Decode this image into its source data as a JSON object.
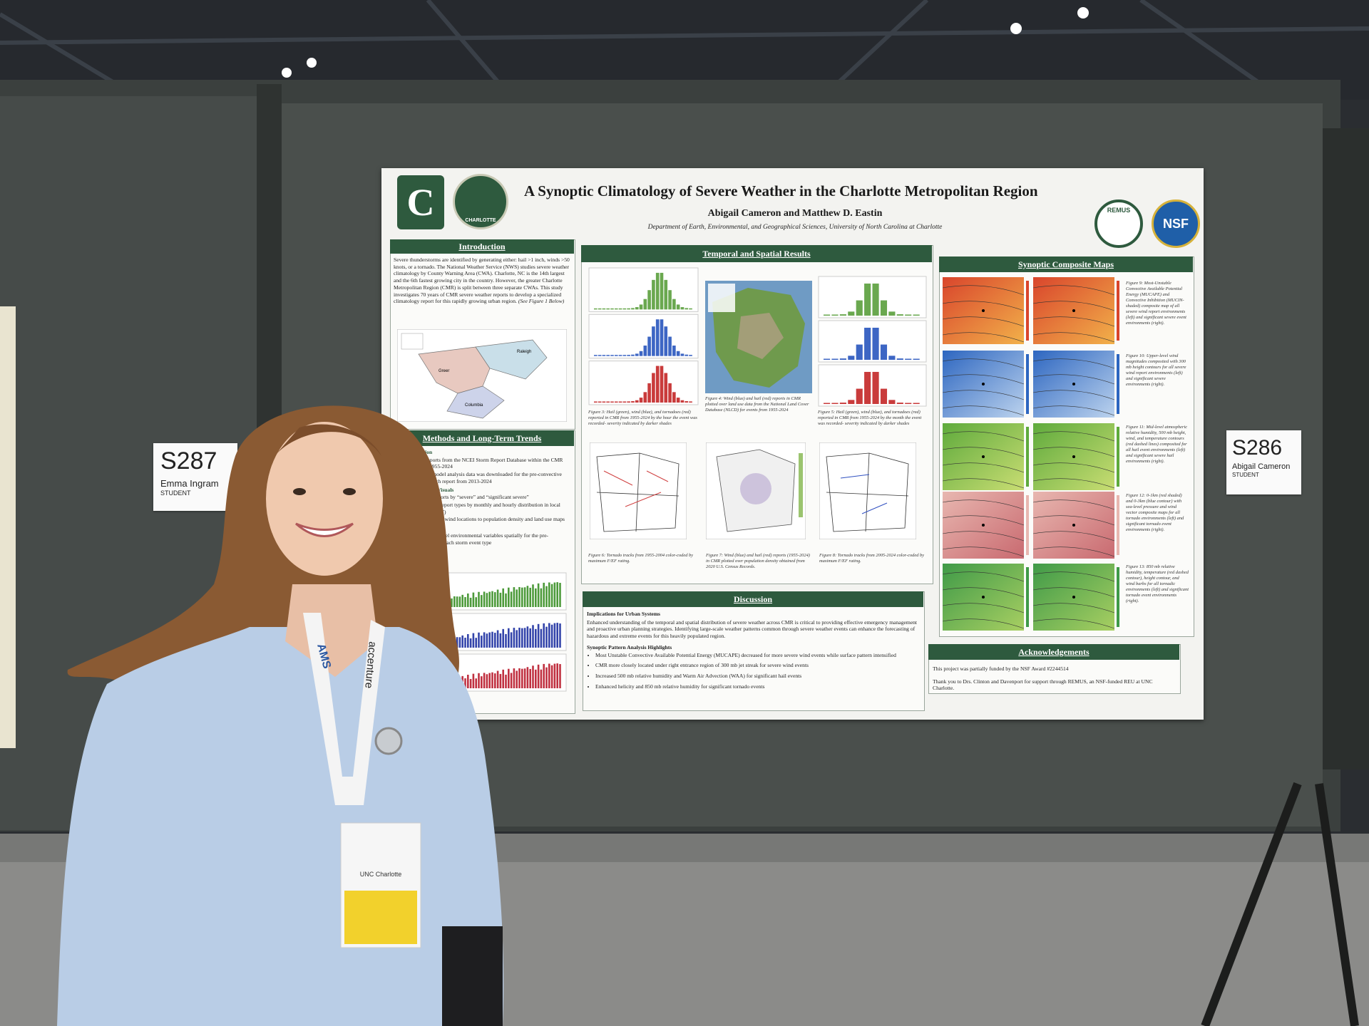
{
  "poster": {
    "title": "A Synoptic Climatology of Severe Weather in the Charlotte Metropolitan Region",
    "authors": "Abigail Cameron and Matthew D. Eastin",
    "affiliation": "Department of Earth, Environmental, and Geographical Sciences, University of North Carolina at Charlotte",
    "logos": {
      "university": "CHARLOTTE",
      "remus": "REMUS",
      "nsf": "NSF"
    },
    "introduction": {
      "heading": "Introduction",
      "text": "Severe thunderstorms are identified by generating either: hail >1 inch, winds >50 knots, or a tornado. The National Weather Service (NWS) studies severe weather climatology by County Warning Area (CWA). Charlotte, NC is the 14th largest and the 6th fastest growing city in the country. However, the greater Charlotte Metropolitan Region (CMR) is split between three separate CWAs. This study investigates 70 years of CMR severe weather reports to develop a specialized climatology report for this rapidly growing urban region.",
      "note": "(See Figure 1 Below)",
      "map_labels": [
        "Greer",
        "Raleigh",
        "Columbia"
      ]
    },
    "methods": {
      "heading": "Methods and Long-Term Trends",
      "groups": [
        {
          "title": "Data Acquisition",
          "items": [
            "All severe reports from the NCEI Storm Report Database within the CMR region from 1955-2024",
            "RAP weather model analysis data was downloaded for the pre-convective hour prior to each report from 2013-2024"
          ]
        },
        {
          "title": "Python Generated Visuals",
          "items": [
            "Differentiated reports by “severe” and “significant severe”",
            "Visualized storm report types by monthly and hourly distribution in local standard time (LST)",
            "Compared hail and wind locations to population density and land use maps"
          ]
        },
        {
          "title": "Composite Maps",
          "items": [
            "Averaged RAP model environmental variables spatially for the pre-convective hour of each storm event type"
          ]
        }
      ]
    },
    "results": {
      "heading": "Temporal and Spatial Results",
      "captions": [
        "Figure 3: Hail (green), wind (blue), and tornadoes (red) reported in CMR from 1955-2024 by the hour the event was recorded- severity indicated by darker shades",
        "Figure 4: Wind (blue) and hail (red) reports in CMR plotted over land use data from the National Land Cover Database (NLCD) for events from 1955-2024",
        "Figure 5: Hail (green), wind (blue), and tornadoes (red) reported in CMR from 1955-2024 by the month the event was recorded- severity indicated by darker shades",
        "Figure 6: Tornado tracks from 1955-2004 color-coded by maximum F/EF rating.",
        "Figure 7: Wind (blue) and hail (red) reports (1955-2024) in CMR plotted over population density obtained from 2020 U.S. Census Records.",
        "Figure 8: Tornado tracks from 2005-2024 color-coded by maximum F/EF rating."
      ]
    },
    "discussion": {
      "heading": "Discussion",
      "subheading1": "Implications for Urban Systems",
      "text": "Enhanced understanding of the temporal and spatial distribution of severe weather across CMR is critical to providing effective emergency management and proactive urban planning strategies. Identifying large-scale weather patterns common through severe weather events can enhance the forecasting of hazardous and extreme events for this heavily populated region.",
      "subheading2": "Synoptic Pattern Analysis Highlights",
      "highlights": [
        "Most Unstable Convective Available Potential Energy (MUCAPE) decreased for more severe wind events while surface pattern intensified",
        "CMR more closely located under right entrance region of 300 mb jet streak for severe wind events",
        "Increased 500 mb relative humidity and Warm Air Advection (WAA) for significant hail events",
        "Enhanced helicity and 850 mb relative humidity for significant tornado events"
      ]
    },
    "synoptic": {
      "heading": "Synoptic Composite Maps",
      "captions": [
        "Figure 9: Most-Unstable Convective Available Potential Energy (MUCAPE) and Convective Inhibition (MUCIN- shaded) composite map of all severe wind report environments (left) and significant severe event environments (right).",
        "Figure 10: Upper-level wind magnitudes composited with 300 mb height contours for all severe wind report environments (left) and significant severe environments (right).",
        "Figure 11: Mid-level atmospheric relative humidity, 500 mb height, wind, and temperature contours (red dashed lines) composited for all hail event environments (left) and significant severe hail environments (right).",
        "Figure 12: 0-1km (red shaded) and 0-3km (blue contour) with sea-level pressure and wind vector composite maps for all tornado environments (left) and significant tornado event environments (right).",
        "Figure 13: 850 mb relative humidity, temperature (red dashed contour), height contour, and wind barbs for all tornadic environments (left) and significant tornado event environments (right)."
      ]
    },
    "acknowledgements": {
      "heading": "Acknowledgements",
      "lines": [
        "This project was partially funded by the NSF Award #2244514",
        "Thank you to Drs. Clinton and Davenport for support through REMUS, an NSF-funded REU at UNC Charlotte."
      ]
    }
  },
  "signs": [
    {
      "number": "S287",
      "name": "Emma Ingram",
      "role": "STUDENT"
    },
    {
      "number": "S286",
      "name": "Abigail Cameron",
      "role": "STUDENT"
    }
  ],
  "badge": {
    "lanyard": "AMS",
    "sponsor": "accenture",
    "org": "UNC Charlotte"
  }
}
